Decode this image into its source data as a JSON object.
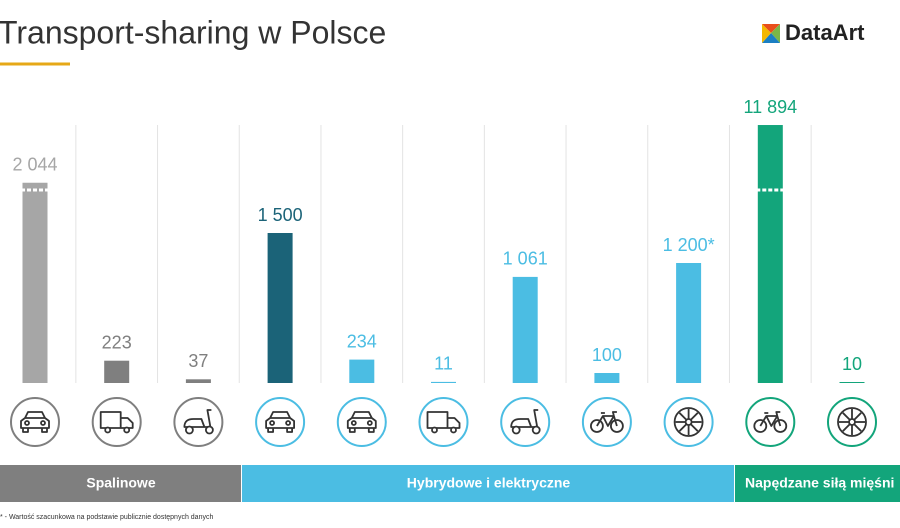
{
  "chart_data": {
    "type": "bar",
    "title": "Transport-sharing w Polsce",
    "logo": "DataArt",
    "values": [
      2044,
      223,
      37,
      1500,
      234,
      11,
      1061,
      100,
      1200,
      11894,
      10
    ],
    "value_labels": [
      "2 044",
      "223",
      "37",
      "1 500",
      "234",
      "11",
      "1 061",
      "100",
      "1 200*",
      "11 894",
      "10"
    ],
    "colors": [
      "#a6a6a6",
      "#7f7f7f",
      "#7f7f7f",
      "#1b6378",
      "#4bbde3",
      "#4bbde3",
      "#4bbde3",
      "#4bbde3",
      "#4bbde3",
      "#13a57b",
      "#13a57b"
    ],
    "groups": [
      {
        "label": "Spalinowe",
        "color": "#7f7f7f"
      },
      {
        "label": "Hybrydowe i elektryczne",
        "color": "#4bbde3"
      },
      {
        "label": "Napędzane siłą mięśni",
        "color": "#13a57b"
      }
    ],
    "footnote": "* - Wartość szacunkowa na podstawie publicznie dostępnych danych"
  }
}
